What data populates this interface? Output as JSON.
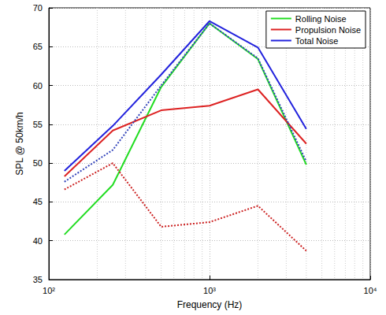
{
  "chart_data": {
    "type": "line",
    "x_label": "Frequency (Hz)",
    "y_label": "SPL @ 50km/h",
    "x": [
      125,
      250,
      500,
      1000,
      2000,
      4000
    ],
    "series": [
      {
        "name": "Rolling Noise",
        "color": "#22dd22",
        "line_style": "solid",
        "values": [
          40.8,
          47.2,
          59.8,
          68.0,
          63.4,
          49.8
        ]
      },
      {
        "name": "Propulsion Noise",
        "color": "#dd2222",
        "line_style": "solid",
        "values": [
          48.3,
          54.2,
          56.8,
          57.4,
          59.5,
          52.5
        ]
      },
      {
        "name": "Total Noise",
        "color": "#2222dd",
        "line_style": "solid",
        "values": [
          49.0,
          54.8,
          61.4,
          68.3,
          64.9,
          54.4
        ]
      },
      {
        "color": "#cc2222",
        "line_style": "dotted",
        "values": [
          46.6,
          50.0,
          41.8,
          42.4,
          44.5,
          38.7
        ]
      },
      {
        "color": "#3344bb",
        "line_style": "dotted",
        "values": [
          47.6,
          51.7,
          60.0,
          68.0,
          63.5,
          50.2
        ]
      }
    ],
    "xlim": [
      100,
      10000
    ],
    "xticks": [
      {
        "value": 100,
        "label": "10²"
      },
      {
        "value": 1000,
        "label": "10³"
      },
      {
        "value": 10000,
        "label": "10⁴"
      }
    ],
    "ylim": [
      35,
      70
    ],
    "yticks": [
      35,
      40,
      45,
      50,
      55,
      60,
      65,
      70
    ],
    "log": "x",
    "grid": true,
    "legend": "upper right"
  }
}
